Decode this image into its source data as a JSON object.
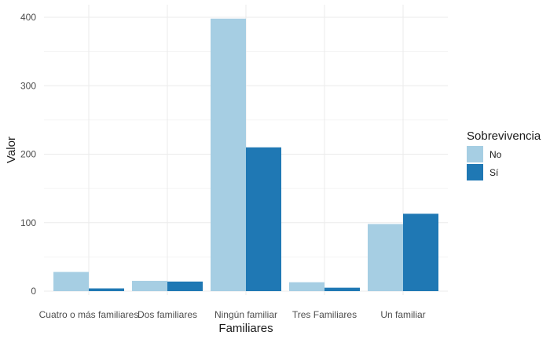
{
  "chart_data": {
    "type": "bar",
    "categories": [
      "Cuatro o más familiares",
      "Dos familiares",
      "Ningún familiar",
      "Tres Familiares",
      "Un familiar"
    ],
    "series": [
      {
        "name": "No",
        "values": [
          28,
          15,
          398,
          13,
          98
        ],
        "color": "#a6cee3"
      },
      {
        "name": "Sí",
        "values": [
          4,
          14,
          210,
          5,
          113
        ],
        "color": "#1f78b4"
      }
    ],
    "xlabel": "Familiares",
    "ylabel": "Valor",
    "ylim": [
      0,
      400
    ],
    "yticks": [
      "0",
      "100",
      "200",
      "300",
      "400"
    ],
    "grid": true,
    "legend": {
      "title": "Sobrevivencia",
      "placement": "right"
    }
  }
}
